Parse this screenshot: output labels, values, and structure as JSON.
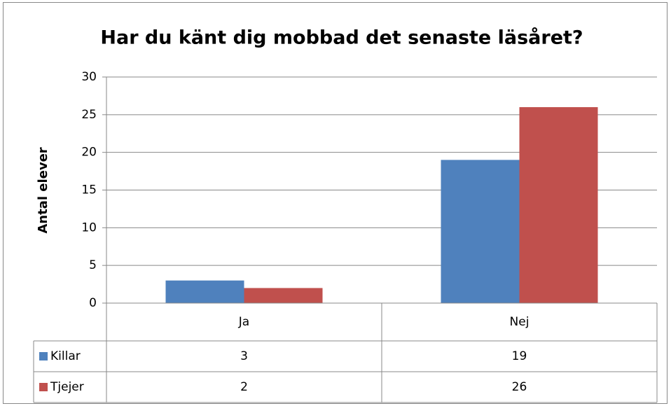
{
  "chart_data": {
    "type": "bar",
    "title": "Har du känt dig mobbad det senaste läsåret?",
    "y_label": "Antal elever",
    "categories": [
      "Ja",
      "Nej"
    ],
    "series": [
      {
        "name": "Killar",
        "color": "#4f81bd",
        "values": [
          3,
          19
        ]
      },
      {
        "name": "Tjejer",
        "color": "#c0504d",
        "values": [
          2,
          26
        ]
      }
    ],
    "ylim": [
      0,
      30
    ],
    "yticks": [
      0,
      5,
      10,
      15,
      20,
      25,
      30
    ],
    "grid": true,
    "data_table": true
  }
}
